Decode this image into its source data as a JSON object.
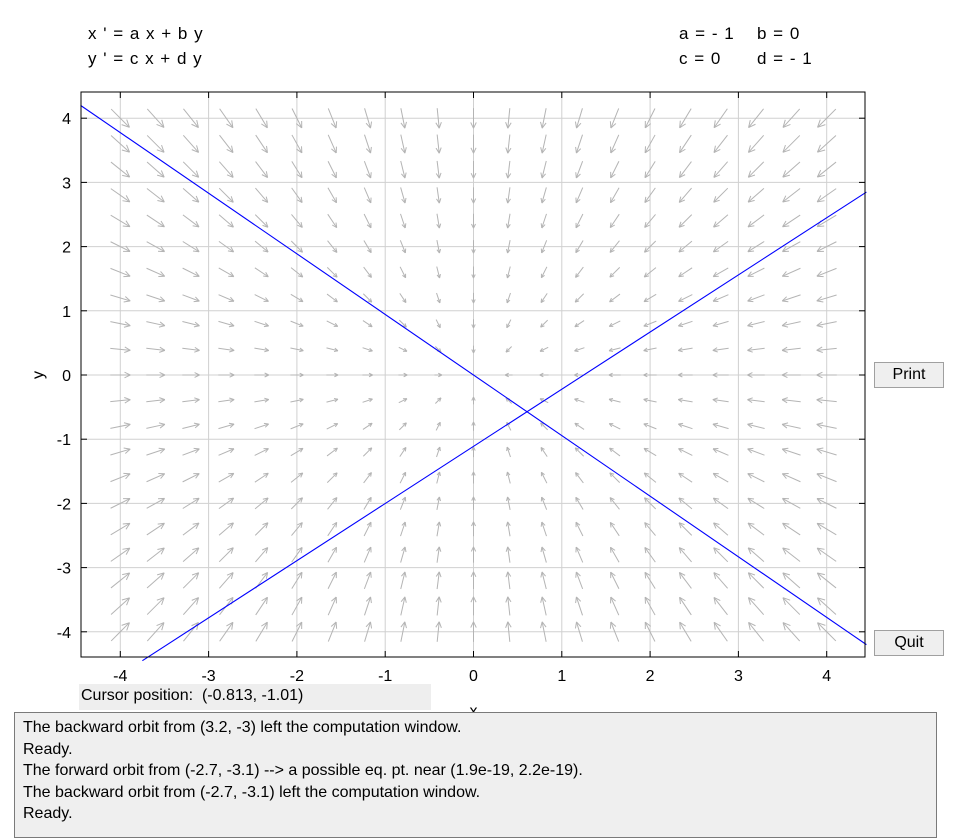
{
  "equations": {
    "x_eq": "x ' = a x + b y",
    "y_eq": "y ' = c x + d y"
  },
  "parameters": {
    "a": "a = - 1",
    "b": "b = 0",
    "c": "c = 0",
    "d": "d = - 1"
  },
  "plot": {
    "x_label": "x",
    "y_label": "y",
    "x_ticks": [
      "-4",
      "-3",
      "-2",
      "-1",
      "0",
      "1",
      "2",
      "3",
      "4"
    ],
    "y_ticks": [
      "4",
      "3",
      "2",
      "1",
      "0",
      "-1",
      "-2",
      "-3",
      "-4"
    ],
    "x_range": [
      -4.45,
      4.45
    ],
    "y_range": [
      -4.45,
      4.2
    ],
    "field_color": "#b4b4b4",
    "orbit_color": "#0000ff",
    "grid_color": "#d0d0d0",
    "orbits": [
      {
        "from": [
          -4.45,
          4.2
        ],
        "to": [
          4.45,
          -4.2
        ]
      },
      {
        "from": [
          -3.75,
          -4.45
        ],
        "to": [
          4.45,
          2.85
        ]
      }
    ]
  },
  "buttons": {
    "print": "Print",
    "quit": "Quit"
  },
  "cursor": {
    "label": "Cursor position:",
    "value": "(-0.813, -1.01)"
  },
  "messages": [
    "The backward orbit from (3.2, -3) left the computation window.",
    "Ready.",
    "The forward orbit from (-2.7, -3.1) --> a possible eq. pt. near (1.9e-19, 2.2e-19).",
    "The backward orbit from (-2.7, -3.1) left the computation window.",
    "Ready."
  ]
}
